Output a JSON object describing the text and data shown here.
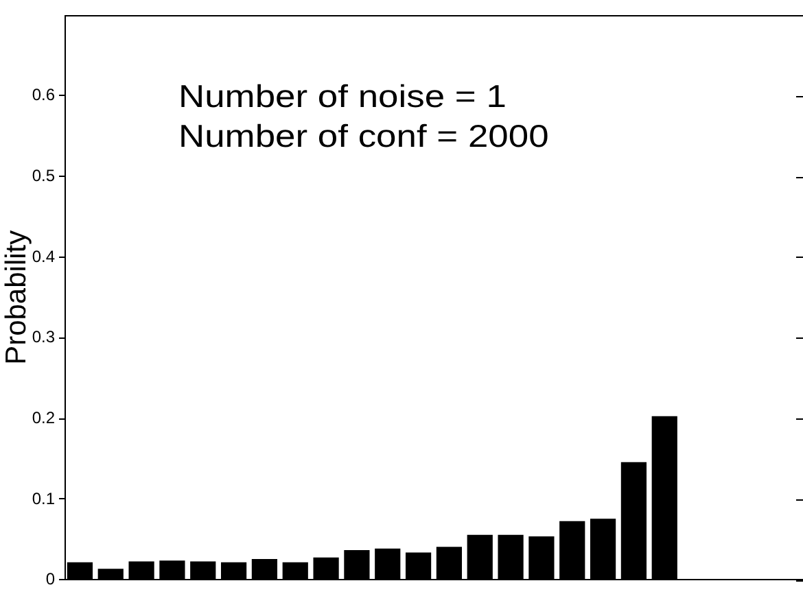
{
  "chart_data": {
    "type": "bar",
    "ylabel": "Probability",
    "annotations": [
      "Number of noise = 1",
      "Number of conf = 2000"
    ],
    "categories": [
      null,
      null,
      null,
      null,
      null,
      null,
      null,
      null,
      null,
      null,
      null,
      null,
      null,
      null,
      null,
      null,
      null,
      null,
      null,
      null,
      null,
      null,
      null,
      null
    ],
    "values": [
      0.022,
      0.014,
      0.023,
      0.024,
      0.023,
      0.022,
      0.026,
      0.022,
      0.028,
      0.037,
      0.039,
      0.034,
      0.041,
      0.056,
      0.056,
      0.054,
      0.073,
      0.076,
      0.146,
      0.203,
      null,
      null,
      null,
      null
    ],
    "color": "#000000",
    "ylim": [
      0,
      0.7
    ],
    "yticks": [
      0,
      0.1,
      0.2,
      0.3,
      0.4,
      0.5,
      0.6
    ],
    "tick_labels": "y"
  }
}
